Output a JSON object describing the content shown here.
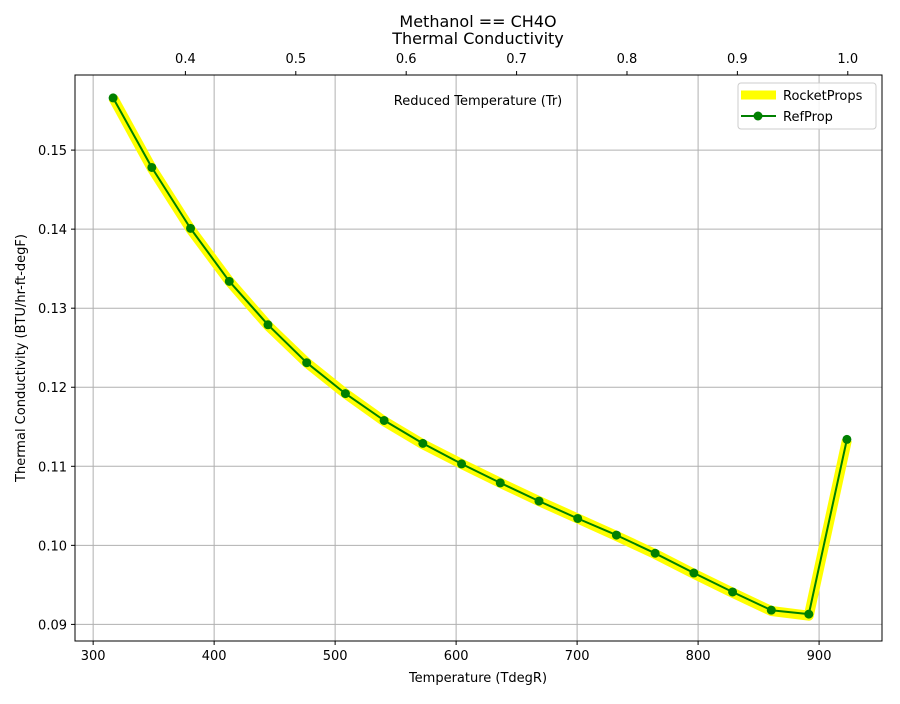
{
  "chart_data": {
    "type": "line",
    "title_line1": "Methanol == CH4O",
    "title_line2": "Thermal Conductivity",
    "xlabel": "Temperature (TdegR)",
    "ylabel": "Thermal Conductivity (BTU/hr-ft-degF)",
    "top_xlabel": "Reduced Temperature (Tr)",
    "xlim": [
      285,
      952
    ],
    "ylim": [
      0.0879,
      0.1595
    ],
    "top_xlim": [
      0.3,
      1.031
    ],
    "x_ticks": [
      300,
      400,
      500,
      600,
      700,
      800,
      900
    ],
    "x_tick_labels": [
      "300",
      "400",
      "500",
      "600",
      "700",
      "800",
      "900"
    ],
    "y_ticks": [
      0.09,
      0.1,
      0.11,
      0.12,
      0.13,
      0.14,
      0.15
    ],
    "y_tick_labels": [
      "0.09",
      "0.10",
      "0.11",
      "0.12",
      "0.13",
      "0.14",
      "0.15"
    ],
    "top_x_ticks": [
      0.4,
      0.5,
      0.6,
      0.7,
      0.8,
      0.9,
      1.0
    ],
    "top_x_tick_labels": [
      "0.4",
      "0.5",
      "0.6",
      "0.7",
      "0.8",
      "0.9",
      "1.0"
    ],
    "grid": true,
    "legend_position": "top-right",
    "series": [
      {
        "name": "RocketProps",
        "color": "#ffff00",
        "style": "thick-line",
        "x": [
          316.5,
          348.5,
          380.5,
          412.5,
          444.5,
          476.5,
          508.5,
          540.5,
          572.5,
          604.5,
          636.5,
          668.5,
          700.5,
          732.5,
          764.5,
          796.5,
          828.5,
          860.5,
          891.5,
          923.0
        ],
        "y": [
          0.1566,
          0.1477,
          0.14,
          0.1334,
          0.1278,
          0.1231,
          0.1192,
          0.1157,
          0.1128,
          0.1103,
          0.1079,
          0.1056,
          0.1034,
          0.1012,
          0.0989,
          0.0964,
          0.094,
          0.0917,
          0.0911,
          0.1133
        ]
      },
      {
        "name": "RefProp",
        "color": "#008000",
        "style": "line-with-markers",
        "x": [
          316.5,
          348.5,
          380.5,
          412.5,
          444.5,
          476.5,
          508.5,
          540.5,
          572.5,
          604.5,
          636.5,
          668.5,
          700.5,
          732.5,
          764.5,
          796.5,
          828.5,
          860.5,
          891.5,
          923.0
        ],
        "y": [
          0.1566,
          0.1478,
          0.1401,
          0.1334,
          0.1279,
          0.1231,
          0.1192,
          0.1158,
          0.1129,
          0.1103,
          0.1079,
          0.1056,
          0.1034,
          0.1013,
          0.099,
          0.0965,
          0.0941,
          0.0918,
          0.0913,
          0.1134
        ]
      }
    ]
  }
}
